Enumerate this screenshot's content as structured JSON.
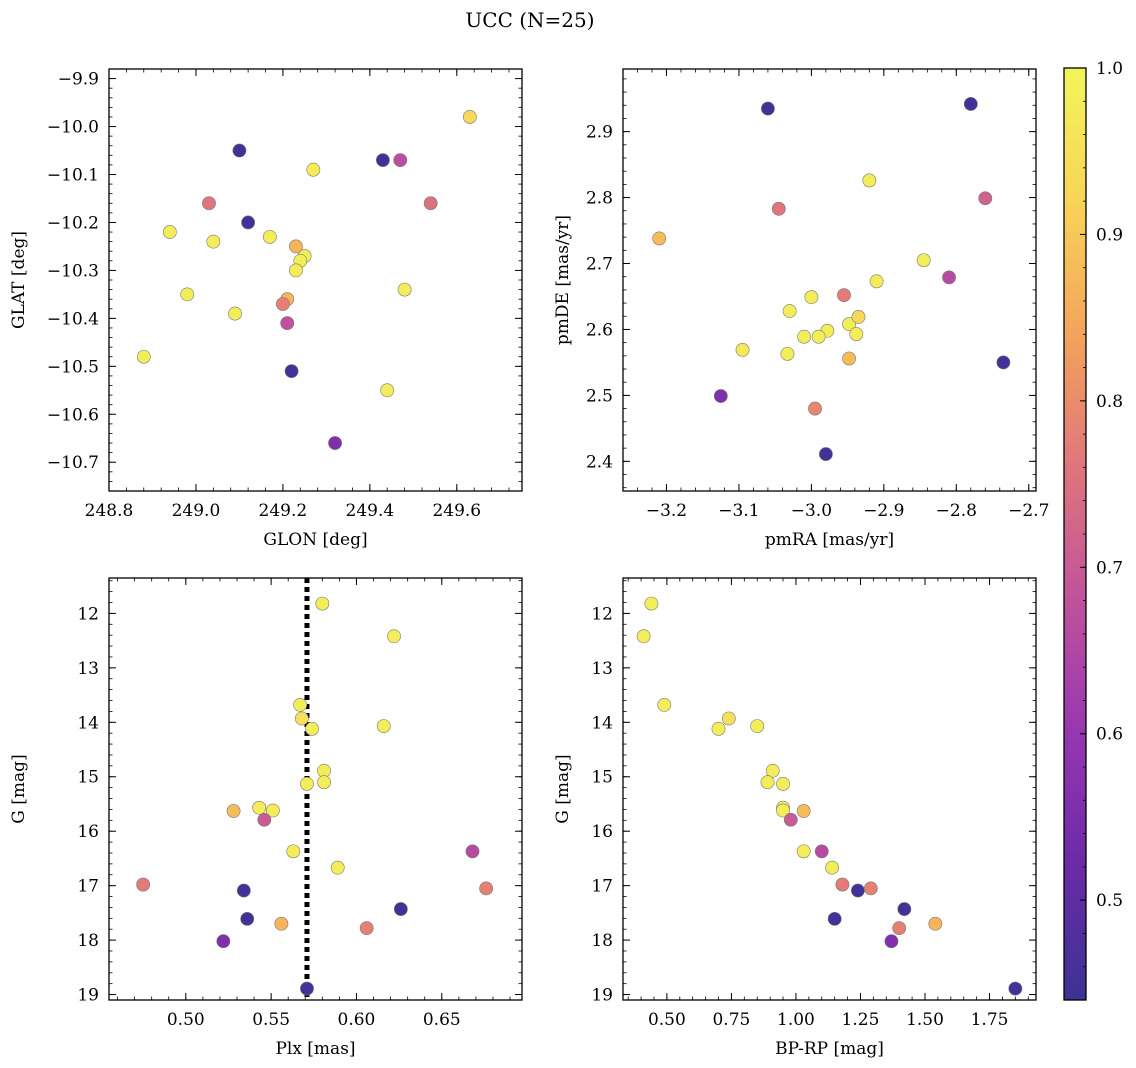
{
  "figure": {
    "title": "UCC (N=25)"
  },
  "colorbar": {
    "range": [
      0.44,
      1.0
    ],
    "ticks": [
      0.5,
      0.6,
      0.7,
      0.8,
      0.9,
      1.0
    ],
    "tick_labels": [
      "0.5",
      "0.6",
      "0.7",
      "0.8",
      "0.9",
      "1.0"
    ],
    "colormap": "plasma",
    "stops": [
      "#3b3394",
      "#6a2aa8",
      "#9736b1",
      "#c0529b",
      "#e0757c",
      "#f4a35c",
      "#f8d458",
      "#f3f55a"
    ]
  },
  "chart_data": [
    {
      "type": "scatter",
      "xlabel": "GLON [deg]",
      "ylabel": "GLAT [deg]",
      "xlim": [
        248.8,
        249.75
      ],
      "ylim": [
        -10.76,
        -9.88
      ],
      "y_inverted": false,
      "xticks": [
        248.8,
        249.0,
        249.2,
        249.4,
        249.6
      ],
      "xtick_labels": [
        "248.8",
        "249.0",
        "249.2",
        "249.4",
        "249.6"
      ],
      "yticks": [
        -9.9,
        -10.0,
        -10.1,
        -10.2,
        -10.3,
        -10.4,
        -10.5,
        -10.6,
        -10.7
      ],
      "ytick_labels": [
        "−9.9",
        "−10.0",
        "−10.1",
        "−10.2",
        "−10.3",
        "−10.4",
        "−10.5",
        "−10.6",
        "−10.7"
      ],
      "points": [
        {
          "x": 249.63,
          "y": -9.98,
          "c": 0.93
        },
        {
          "x": 249.1,
          "y": -10.05,
          "c": 0.45
        },
        {
          "x": 249.43,
          "y": -10.07,
          "c": 0.45
        },
        {
          "x": 249.47,
          "y": -10.07,
          "c": 0.67
        },
        {
          "x": 249.27,
          "y": -10.09,
          "c": 0.98
        },
        {
          "x": 249.03,
          "y": -10.16,
          "c": 0.76
        },
        {
          "x": 249.54,
          "y": -10.16,
          "c": 0.75
        },
        {
          "x": 249.12,
          "y": -10.2,
          "c": 0.45
        },
        {
          "x": 248.94,
          "y": -10.22,
          "c": 0.98
        },
        {
          "x": 249.04,
          "y": -10.24,
          "c": 0.98
        },
        {
          "x": 249.17,
          "y": -10.23,
          "c": 0.98
        },
        {
          "x": 249.23,
          "y": -10.25,
          "c": 0.87
        },
        {
          "x": 249.25,
          "y": -10.27,
          "c": 0.98
        },
        {
          "x": 249.24,
          "y": -10.28,
          "c": 0.98
        },
        {
          "x": 249.23,
          "y": -10.3,
          "c": 0.98
        },
        {
          "x": 248.98,
          "y": -10.35,
          "c": 0.98
        },
        {
          "x": 249.48,
          "y": -10.34,
          "c": 0.98
        },
        {
          "x": 249.21,
          "y": -10.36,
          "c": 0.87
        },
        {
          "x": 249.2,
          "y": -10.37,
          "c": 0.78
        },
        {
          "x": 249.09,
          "y": -10.39,
          "c": 0.98
        },
        {
          "x": 249.21,
          "y": -10.41,
          "c": 0.68
        },
        {
          "x": 248.88,
          "y": -10.48,
          "c": 0.98
        },
        {
          "x": 249.22,
          "y": -10.51,
          "c": 0.45
        },
        {
          "x": 249.44,
          "y": -10.55,
          "c": 0.98
        },
        {
          "x": 249.32,
          "y": -10.66,
          "c": 0.56
        }
      ]
    },
    {
      "type": "scatter",
      "xlabel": "pmRA [mas/yr]",
      "ylabel": "pmDE [mas/yr]",
      "xlim": [
        -3.26,
        -2.69
      ],
      "ylim": [
        2.355,
        2.995
      ],
      "y_inverted": false,
      "xticks": [
        -3.2,
        -3.1,
        -3.0,
        -2.9,
        -2.8,
        -2.7
      ],
      "xtick_labels": [
        "−3.2",
        "−3.1",
        "−3.0",
        "−2.9",
        "−2.8",
        "−2.7"
      ],
      "yticks": [
        2.4,
        2.5,
        2.6,
        2.7,
        2.8,
        2.9
      ],
      "ytick_labels": [
        "2.4",
        "2.5",
        "2.6",
        "2.7",
        "2.8",
        "2.9"
      ],
      "points": [
        {
          "x": -3.06,
          "y": 2.935,
          "c": 0.45
        },
        {
          "x": -2.78,
          "y": 2.942,
          "c": 0.45
        },
        {
          "x": -2.92,
          "y": 2.826,
          "c": 0.98
        },
        {
          "x": -3.045,
          "y": 2.783,
          "c": 0.76
        },
        {
          "x": -2.76,
          "y": 2.799,
          "c": 0.72
        },
        {
          "x": -3.21,
          "y": 2.738,
          "c": 0.88
        },
        {
          "x": -2.845,
          "y": 2.705,
          "c": 0.98
        },
        {
          "x": -2.91,
          "y": 2.673,
          "c": 0.98
        },
        {
          "x": -2.81,
          "y": 2.679,
          "c": 0.66
        },
        {
          "x": -2.955,
          "y": 2.652,
          "c": 0.77
        },
        {
          "x": -3.03,
          "y": 2.628,
          "c": 0.98
        },
        {
          "x": -3.0,
          "y": 2.649,
          "c": 0.98
        },
        {
          "x": -2.935,
          "y": 2.619,
          "c": 0.93
        },
        {
          "x": -2.948,
          "y": 2.608,
          "c": 0.98
        },
        {
          "x": -2.978,
          "y": 2.598,
          "c": 0.98
        },
        {
          "x": -3.01,
          "y": 2.589,
          "c": 0.98
        },
        {
          "x": -2.99,
          "y": 2.589,
          "c": 0.98
        },
        {
          "x": -2.938,
          "y": 2.593,
          "c": 0.98
        },
        {
          "x": -3.095,
          "y": 2.569,
          "c": 0.97
        },
        {
          "x": -3.033,
          "y": 2.563,
          "c": 0.98
        },
        {
          "x": -2.948,
          "y": 2.556,
          "c": 0.88
        },
        {
          "x": -2.735,
          "y": 2.55,
          "c": 0.45
        },
        {
          "x": -3.125,
          "y": 2.499,
          "c": 0.56
        },
        {
          "x": -2.995,
          "y": 2.48,
          "c": 0.79
        },
        {
          "x": -2.98,
          "y": 2.411,
          "c": 0.45
        }
      ]
    },
    {
      "type": "scatter",
      "xlabel": "Plx [mas]",
      "ylabel": "G [mag]",
      "xlim": [
        0.455,
        0.697
      ],
      "ylim": [
        19.1,
        11.35
      ],
      "y_inverted": true,
      "xticks": [
        0.5,
        0.55,
        0.6,
        0.65
      ],
      "xtick_labels": [
        "0.50",
        "0.55",
        "0.60",
        "0.65"
      ],
      "yticks": [
        12,
        13,
        14,
        15,
        16,
        17,
        18,
        19
      ],
      "ytick_labels": [
        "12",
        "13",
        "14",
        "15",
        "16",
        "17",
        "18",
        "19"
      ],
      "vline": {
        "x": 0.571,
        "style": "dotted"
      },
      "points": [
        {
          "x": 0.58,
          "y": 11.82,
          "c": 0.98
        },
        {
          "x": 0.622,
          "y": 12.42,
          "c": 0.98
        },
        {
          "x": 0.567,
          "y": 13.68,
          "c": 0.98
        },
        {
          "x": 0.568,
          "y": 13.93,
          "c": 0.95
        },
        {
          "x": 0.574,
          "y": 14.12,
          "c": 0.98
        },
        {
          "x": 0.616,
          "y": 14.07,
          "c": 0.98
        },
        {
          "x": 0.581,
          "y": 14.89,
          "c": 0.98
        },
        {
          "x": 0.571,
          "y": 15.13,
          "c": 0.98
        },
        {
          "x": 0.581,
          "y": 15.1,
          "c": 0.98
        },
        {
          "x": 0.528,
          "y": 15.63,
          "c": 0.88
        },
        {
          "x": 0.543,
          "y": 15.57,
          "c": 0.98
        },
        {
          "x": 0.551,
          "y": 15.62,
          "c": 0.98
        },
        {
          "x": 0.546,
          "y": 15.79,
          "c": 0.7
        },
        {
          "x": 0.563,
          "y": 16.37,
          "c": 0.98
        },
        {
          "x": 0.589,
          "y": 16.67,
          "c": 0.98
        },
        {
          "x": 0.668,
          "y": 16.37,
          "c": 0.66
        },
        {
          "x": 0.475,
          "y": 16.98,
          "c": 0.77
        },
        {
          "x": 0.676,
          "y": 17.05,
          "c": 0.78
        },
        {
          "x": 0.534,
          "y": 17.09,
          "c": 0.45
        },
        {
          "x": 0.536,
          "y": 17.61,
          "c": 0.45
        },
        {
          "x": 0.626,
          "y": 17.43,
          "c": 0.45
        },
        {
          "x": 0.556,
          "y": 17.7,
          "c": 0.87
        },
        {
          "x": 0.606,
          "y": 17.78,
          "c": 0.78
        },
        {
          "x": 0.522,
          "y": 18.02,
          "c": 0.56
        },
        {
          "x": 0.571,
          "y": 18.89,
          "c": 0.45
        }
      ]
    },
    {
      "type": "scatter",
      "xlabel": "BP-RP [mag]",
      "ylabel": "G [mag]",
      "xlim": [
        0.33,
        1.93
      ],
      "ylim": [
        19.1,
        11.35
      ],
      "y_inverted": true,
      "xticks": [
        0.5,
        0.75,
        1.0,
        1.25,
        1.5,
        1.75
      ],
      "xtick_labels": [
        "0.50",
        "0.75",
        "1.00",
        "1.25",
        "1.50",
        "1.75"
      ],
      "yticks": [
        12,
        13,
        14,
        15,
        16,
        17,
        18,
        19
      ],
      "ytick_labels": [
        "12",
        "13",
        "14",
        "15",
        "16",
        "17",
        "18",
        "19"
      ],
      "points": [
        {
          "x": 0.44,
          "y": 11.82,
          "c": 0.98
        },
        {
          "x": 0.41,
          "y": 12.42,
          "c": 0.98
        },
        {
          "x": 0.49,
          "y": 13.68,
          "c": 0.98
        },
        {
          "x": 0.74,
          "y": 13.93,
          "c": 0.95
        },
        {
          "x": 0.7,
          "y": 14.12,
          "c": 0.98
        },
        {
          "x": 0.85,
          "y": 14.07,
          "c": 0.98
        },
        {
          "x": 0.91,
          "y": 14.89,
          "c": 0.98
        },
        {
          "x": 0.89,
          "y": 15.1,
          "c": 0.98
        },
        {
          "x": 0.95,
          "y": 15.13,
          "c": 0.98
        },
        {
          "x": 0.95,
          "y": 15.57,
          "c": 0.98
        },
        {
          "x": 0.95,
          "y": 15.62,
          "c": 0.98
        },
        {
          "x": 1.03,
          "y": 15.63,
          "c": 0.88
        },
        {
          "x": 0.98,
          "y": 15.79,
          "c": 0.7
        },
        {
          "x": 1.03,
          "y": 16.37,
          "c": 0.98
        },
        {
          "x": 1.1,
          "y": 16.37,
          "c": 0.66
        },
        {
          "x": 1.14,
          "y": 16.67,
          "c": 0.98
        },
        {
          "x": 1.18,
          "y": 16.98,
          "c": 0.77
        },
        {
          "x": 1.29,
          "y": 17.05,
          "c": 0.78
        },
        {
          "x": 1.24,
          "y": 17.09,
          "c": 0.45
        },
        {
          "x": 1.15,
          "y": 17.61,
          "c": 0.45
        },
        {
          "x": 1.42,
          "y": 17.43,
          "c": 0.45
        },
        {
          "x": 1.54,
          "y": 17.7,
          "c": 0.87
        },
        {
          "x": 1.4,
          "y": 17.78,
          "c": 0.78
        },
        {
          "x": 1.37,
          "y": 18.02,
          "c": 0.56
        },
        {
          "x": 1.85,
          "y": 18.89,
          "c": 0.45
        }
      ]
    }
  ]
}
